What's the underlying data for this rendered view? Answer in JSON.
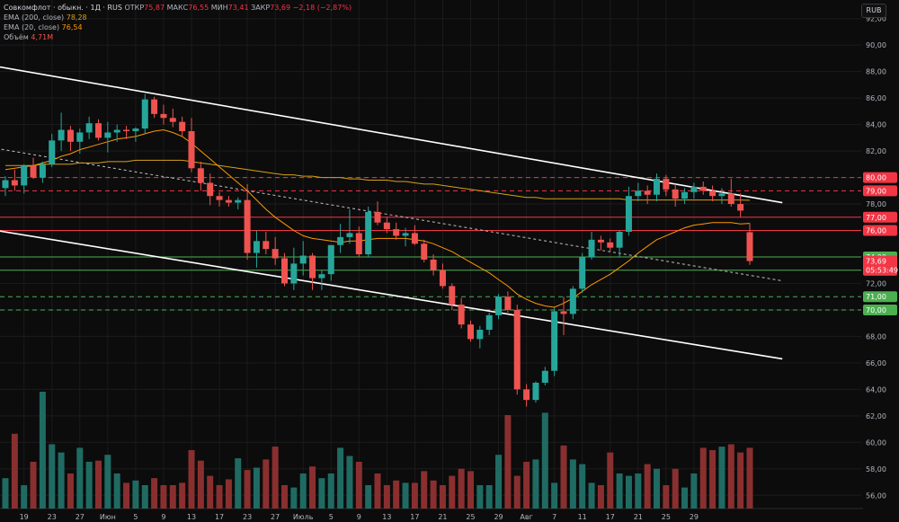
{
  "header": {
    "symbol": "Совкомфлот · обыкн. · 1Д · RUS",
    "open_label": "ОТКР",
    "open": "75,87",
    "high_label": "МАКС",
    "high": "76,55",
    "low_label": "МИН",
    "low": "73,41",
    "close_label": "ЗАКР",
    "close": "73,69",
    "change": "−2,18 (−2,87%)",
    "ema200_label": "EMA (200, close)",
    "ema200": "78,28",
    "ema20_label": "EMA (20, close)",
    "ema20": "76,54",
    "volume_label": "Объём",
    "volume": "4,71M"
  },
  "currency_button": "RUB",
  "colors": {
    "up": "#26a69a",
    "down": "#ef5350",
    "ema200": "#d4a017",
    "ema20": "#ff9800",
    "resistance": "#f23645",
    "support": "#4caf50"
  },
  "chart_data": {
    "type": "candlestick",
    "price_axis": {
      "min": 55,
      "max": 93,
      "ticks": [
        "56,00",
        "58,00",
        "60,00",
        "62,00",
        "64,00",
        "66,00",
        "68,00",
        "70,00",
        "72,00",
        "74,00",
        "76,00",
        "78,00",
        "80,00",
        "82,00",
        "84,00",
        "86,00",
        "88,00",
        "90,00",
        "92,00"
      ]
    },
    "x_ticks": [
      {
        "label": "19",
        "index": 2
      },
      {
        "label": "23",
        "index": 5
      },
      {
        "label": "27",
        "index": 8
      },
      {
        "label": "Июн",
        "index": 11
      },
      {
        "label": "5",
        "index": 14
      },
      {
        "label": "9",
        "index": 17
      },
      {
        "label": "13",
        "index": 20
      },
      {
        "label": "17",
        "index": 23
      },
      {
        "label": "23",
        "index": 26
      },
      {
        "label": "27",
        "index": 29
      },
      {
        "label": "Июль",
        "index": 32
      },
      {
        "label": "5",
        "index": 35
      },
      {
        "label": "9",
        "index": 38
      },
      {
        "label": "13",
        "index": 41
      },
      {
        "label": "17",
        "index": 44
      },
      {
        "label": "21",
        "index": 47
      },
      {
        "label": "25",
        "index": 50
      },
      {
        "label": "29",
        "index": 53
      },
      {
        "label": "Авг",
        "index": 56
      },
      {
        "label": "7",
        "index": 59
      },
      {
        "label": "11",
        "index": 62
      },
      {
        "label": "17",
        "index": 65
      },
      {
        "label": "21",
        "index": 68
      },
      {
        "label": "25",
        "index": 71
      },
      {
        "label": "29",
        "index": 74
      }
    ],
    "candles": [
      [
        79.2,
        80.1,
        78.6,
        79.8
      ],
      [
        79.8,
        80.6,
        79.0,
        79.4
      ],
      [
        79.4,
        81.0,
        78.8,
        80.9
      ],
      [
        80.9,
        81.5,
        79.9,
        80.0
      ],
      [
        80.0,
        81.2,
        79.6,
        81.0
      ],
      [
        81.0,
        83.3,
        80.8,
        82.8
      ],
      [
        82.8,
        84.9,
        82.0,
        83.6
      ],
      [
        83.6,
        83.9,
        82.0,
        82.7
      ],
      [
        82.7,
        83.7,
        81.8,
        83.4
      ],
      [
        83.4,
        84.6,
        82.9,
        84.1
      ],
      [
        84.1,
        84.4,
        82.8,
        83.0
      ],
      [
        83.0,
        84.2,
        81.9,
        83.4
      ],
      [
        83.4,
        84.0,
        82.7,
        83.6
      ],
      [
        83.6,
        83.9,
        82.9,
        83.5
      ],
      [
        83.5,
        83.8,
        82.7,
        83.7
      ],
      [
        83.7,
        86.3,
        83.3,
        85.9
      ],
      [
        85.9,
        86.1,
        84.5,
        84.8
      ],
      [
        84.8,
        85.5,
        84.0,
        84.5
      ],
      [
        84.5,
        85.2,
        83.8,
        84.2
      ],
      [
        84.2,
        84.6,
        83.1,
        83.5
      ],
      [
        83.5,
        84.5,
        80.4,
        80.7
      ],
      [
        80.7,
        81.2,
        79.0,
        79.6
      ],
      [
        79.6,
        80.3,
        77.9,
        78.6
      ],
      [
        78.6,
        78.9,
        77.8,
        78.3
      ],
      [
        78.3,
        78.6,
        77.8,
        78.1
      ],
      [
        78.1,
        78.5,
        77.6,
        78.3
      ],
      [
        78.3,
        79.5,
        73.8,
        74.3
      ],
      [
        74.3,
        76.0,
        73.2,
        75.2
      ],
      [
        75.2,
        75.9,
        74.2,
        74.6
      ],
      [
        74.6,
        75.5,
        73.4,
        73.9
      ],
      [
        73.9,
        74.3,
        71.8,
        72.0
      ],
      [
        72.0,
        74.7,
        71.5,
        73.5
      ],
      [
        73.5,
        75.2,
        72.6,
        74.1
      ],
      [
        74.1,
        74.3,
        71.5,
        72.4
      ],
      [
        72.4,
        73.0,
        71.5,
        72.7
      ],
      [
        72.7,
        74.8,
        72.2,
        74.9
      ],
      [
        74.9,
        76.5,
        74.3,
        75.5
      ],
      [
        75.5,
        77.6,
        75.0,
        75.8
      ],
      [
        75.8,
        76.3,
        74.0,
        74.2
      ],
      [
        74.2,
        77.8,
        74.0,
        77.4
      ],
      [
        77.4,
        78.2,
        76.4,
        76.6
      ],
      [
        76.6,
        77.0,
        75.8,
        76.1
      ],
      [
        76.1,
        76.6,
        75.3,
        75.6
      ],
      [
        75.6,
        76.2,
        74.8,
        75.8
      ],
      [
        75.8,
        76.4,
        74.9,
        75.0
      ],
      [
        75.0,
        75.3,
        73.6,
        73.8
      ],
      [
        73.8,
        74.2,
        72.6,
        73.0
      ],
      [
        73.0,
        73.5,
        71.6,
        71.8
      ],
      [
        71.8,
        72.0,
        70.0,
        70.4
      ],
      [
        70.4,
        70.9,
        68.6,
        68.9
      ],
      [
        68.9,
        69.2,
        67.6,
        67.8
      ],
      [
        67.8,
        68.8,
        67.1,
        68.5
      ],
      [
        68.5,
        69.8,
        68.1,
        69.6
      ],
      [
        69.6,
        71.2,
        69.3,
        71.0
      ],
      [
        71.0,
        71.4,
        69.8,
        70.0
      ],
      [
        70.0,
        70.4,
        63.6,
        64.0
      ],
      [
        64.0,
        64.4,
        62.7,
        63.2
      ],
      [
        63.2,
        64.6,
        63.0,
        64.5
      ],
      [
        64.5,
        65.7,
        64.3,
        65.4
      ],
      [
        65.4,
        70.2,
        65.0,
        69.9
      ],
      [
        69.9,
        71.0,
        68.1,
        69.7
      ],
      [
        69.7,
        71.8,
        69.3,
        71.6
      ],
      [
        71.6,
        74.3,
        71.3,
        74.0
      ],
      [
        74.0,
        75.9,
        73.8,
        75.3
      ],
      [
        75.3,
        75.6,
        74.5,
        75.1
      ],
      [
        75.1,
        75.4,
        74.4,
        74.7
      ],
      [
        74.7,
        76.0,
        74.0,
        75.9
      ],
      [
        75.9,
        79.3,
        75.6,
        78.6
      ],
      [
        78.6,
        79.6,
        78.2,
        79.0
      ],
      [
        79.0,
        79.4,
        78.0,
        78.7
      ],
      [
        78.7,
        80.3,
        78.2,
        79.9
      ],
      [
        79.9,
        80.2,
        78.6,
        79.1
      ],
      [
        79.1,
        79.5,
        77.8,
        78.4
      ],
      [
        78.4,
        79.2,
        78.0,
        78.9
      ],
      [
        78.9,
        79.6,
        78.4,
        79.3
      ],
      [
        79.3,
        79.7,
        78.7,
        79.0
      ],
      [
        79.0,
        79.4,
        78.2,
        78.6
      ],
      [
        78.6,
        79.2,
        78.0,
        78.8
      ],
      [
        78.8,
        79.9,
        77.8,
        78.0
      ],
      [
        78.0,
        78.8,
        77.0,
        77.5
      ],
      [
        75.87,
        76.55,
        73.41,
        73.69
      ]
    ],
    "volumes": [
      0.26,
      0.64,
      0.2,
      0.4,
      1.0,
      0.55,
      0.48,
      0.3,
      0.52,
      0.4,
      0.41,
      0.46,
      0.3,
      0.22,
      0.24,
      0.2,
      0.26,
      0.2,
      0.2,
      0.22,
      0.5,
      0.41,
      0.28,
      0.2,
      0.25,
      0.43,
      0.33,
      0.35,
      0.42,
      0.53,
      0.2,
      0.18,
      0.3,
      0.36,
      0.26,
      0.3,
      0.52,
      0.45,
      0.4,
      0.2,
      0.3,
      0.2,
      0.24,
      0.22,
      0.22,
      0.32,
      0.24,
      0.2,
      0.28,
      0.34,
      0.32,
      0.2,
      0.2,
      0.46,
      0.8,
      0.28,
      0.4,
      0.42,
      0.82,
      0.22,
      0.54,
      0.42,
      0.38,
      0.22,
      0.2,
      0.48,
      0.3,
      0.28,
      0.3,
      0.38,
      0.34,
      0.2,
      0.34,
      0.18,
      0.3,
      0.52,
      0.5,
      0.53,
      0.55,
      0.48,
      0.52
    ],
    "ema20": [
      80.6,
      80.7,
      80.8,
      80.9,
      81.1,
      81.3,
      81.6,
      81.8,
      82.1,
      82.3,
      82.5,
      82.7,
      82.9,
      83.0,
      83.1,
      83.3,
      83.5,
      83.6,
      83.4,
      83.1,
      82.6,
      82.0,
      81.4,
      80.8,
      80.2,
      79.6,
      79.0,
      78.3,
      77.6,
      77.0,
      76.5,
      76.0,
      75.6,
      75.4,
      75.3,
      75.2,
      75.1,
      75.2,
      75.2,
      75.3,
      75.4,
      75.4,
      75.4,
      75.4,
      75.3,
      75.2,
      75.0,
      74.7,
      74.4,
      74.0,
      73.6,
      73.2,
      72.8,
      72.3,
      71.8,
      71.2,
      70.8,
      70.5,
      70.3,
      70.2,
      70.5,
      70.9,
      71.4,
      71.9,
      72.3,
      72.7,
      73.2,
      73.7,
      74.3,
      74.8,
      75.3,
      75.6,
      75.9,
      76.2,
      76.4,
      76.5,
      76.6,
      76.6,
      76.6,
      76.5,
      76.54
    ],
    "ema200": [
      80.9,
      80.9,
      80.9,
      80.9,
      81.0,
      81.0,
      81.0,
      81.0,
      81.1,
      81.1,
      81.1,
      81.2,
      81.2,
      81.2,
      81.3,
      81.3,
      81.3,
      81.3,
      81.3,
      81.3,
      81.2,
      81.1,
      81.0,
      80.9,
      80.8,
      80.7,
      80.6,
      80.5,
      80.4,
      80.3,
      80.2,
      80.2,
      80.1,
      80.1,
      80.0,
      80.0,
      80.0,
      79.9,
      79.9,
      79.8,
      79.8,
      79.8,
      79.7,
      79.7,
      79.6,
      79.5,
      79.5,
      79.4,
      79.3,
      79.2,
      79.1,
      79.0,
      78.9,
      78.8,
      78.7,
      78.6,
      78.5,
      78.5,
      78.4,
      78.4,
      78.4,
      78.4,
      78.4,
      78.4,
      78.4,
      78.4,
      78.4,
      78.3,
      78.3,
      78.3,
      78.3,
      78.3,
      78.3,
      78.3,
      78.3,
      78.3,
      78.3,
      78.3,
      78.3,
      78.3,
      78.28
    ],
    "levels": [
      {
        "price": 80.0,
        "label": "80,00",
        "color": "#f23645",
        "style": "dashed"
      },
      {
        "price": 79.0,
        "label": "79,00",
        "color": "#f23645",
        "style": "dashed"
      },
      {
        "price": 77.0,
        "label": "77,00",
        "color": "#f23645",
        "style": "solid"
      },
      {
        "price": 76.0,
        "label": "76,00",
        "color": "#f23645",
        "style": "solid"
      },
      {
        "price": 74.0,
        "label": "74,00",
        "color": "#4caf50",
        "style": "solid"
      },
      {
        "price": 73.0,
        "label": "73,00",
        "color": "#4caf50",
        "style": "solid"
      },
      {
        "price": 71.0,
        "label": "71,00",
        "color": "#4caf50",
        "style": "dashed"
      },
      {
        "price": 70.0,
        "label": "70,00",
        "color": "#4caf50",
        "style": "dashed"
      }
    ],
    "trendlines": [
      {
        "from": [
          -1,
          88.4
        ],
        "to": [
          83.5,
          78.1
        ],
        "color": "#ffffff",
        "style": "solid"
      },
      {
        "from": [
          -1,
          76.0
        ],
        "to": [
          83.5,
          66.3
        ],
        "color": "#ffffff",
        "style": "solid"
      },
      {
        "from": [
          -1,
          82.2
        ],
        "to": [
          83.5,
          72.2
        ],
        "color": "#c0c0c0",
        "style": "dashed"
      }
    ],
    "last_price": {
      "label": "73,69",
      "timer": "05:53:49"
    }
  }
}
